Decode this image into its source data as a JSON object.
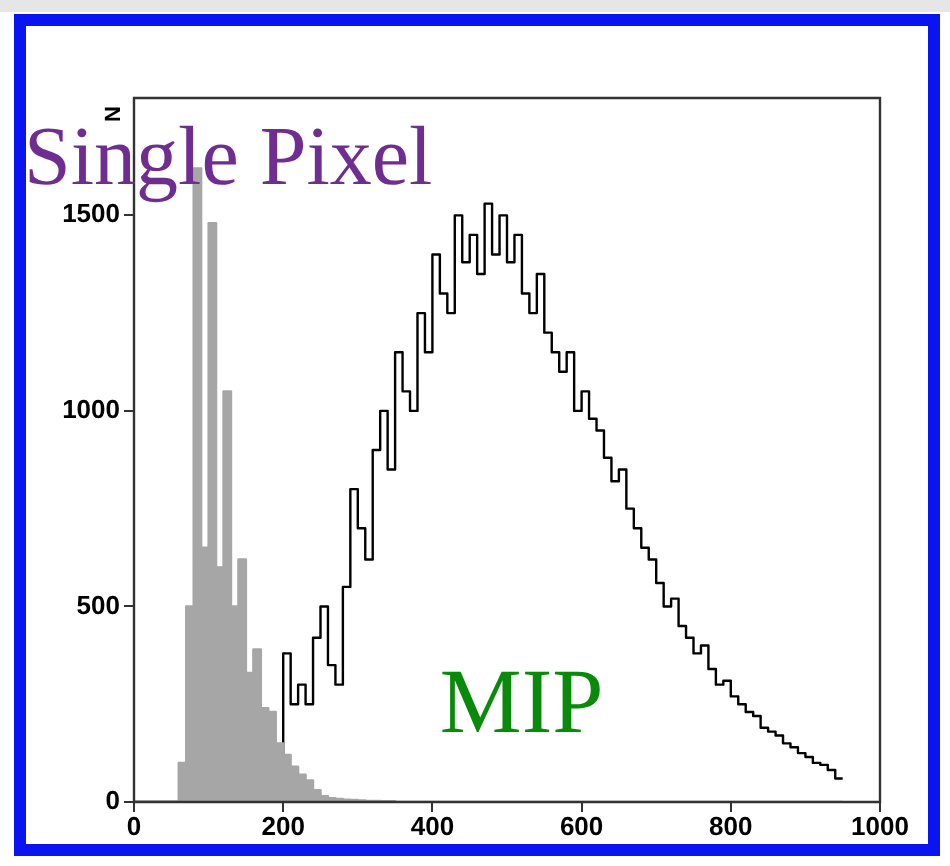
{
  "chart_data": {
    "type": "histogram",
    "ylabel": "N",
    "bins": [
      0,
      10,
      20,
      30,
      40,
      50,
      60,
      70,
      80,
      90,
      100,
      110,
      120,
      130,
      140,
      150,
      160,
      170,
      180,
      190,
      200,
      210,
      220,
      230,
      240,
      250,
      260,
      270,
      280,
      290,
      300,
      310,
      320,
      330,
      340,
      350,
      360,
      370,
      380,
      390,
      400,
      410,
      420,
      430,
      440,
      450,
      460,
      470,
      480,
      490,
      500,
      510,
      520,
      530,
      540,
      550,
      560,
      570,
      580,
      590,
      600,
      610,
      620,
      630,
      640,
      650,
      660,
      670,
      680,
      690,
      700,
      710,
      720,
      730,
      740,
      750,
      760,
      770,
      780,
      790,
      800,
      810,
      820,
      830,
      840,
      850,
      860,
      870,
      880,
      890,
      900,
      910,
      920,
      930,
      940,
      950
    ],
    "series": [
      {
        "name": "Single Pixel",
        "color": "#a6a6a6",
        "values": [
          0,
          0,
          0,
          0,
          0,
          0,
          100,
          500,
          1620,
          650,
          1480,
          600,
          1050,
          500,
          620,
          330,
          390,
          240,
          230,
          150,
          120,
          90,
          70,
          55,
          30,
          15,
          10,
          8,
          6,
          5,
          4,
          3,
          3,
          2,
          2,
          0,
          0,
          0,
          0,
          0,
          0,
          0,
          0,
          0,
          0,
          0,
          0,
          0,
          0,
          0,
          0,
          0,
          0,
          0,
          0,
          0,
          0,
          0,
          0,
          0,
          0,
          0,
          0,
          0,
          0,
          0,
          0,
          0,
          0,
          0,
          0,
          0,
          0,
          0,
          0,
          0,
          0,
          0,
          0,
          0,
          0,
          0,
          0,
          0,
          0,
          0,
          0,
          0,
          0,
          0,
          0,
          0,
          0,
          0,
          0
        ]
      },
      {
        "name": "MIP",
        "color": "#000000",
        "values": [
          0,
          0,
          0,
          0,
          0,
          0,
          0,
          0,
          0,
          0,
          0,
          0,
          0,
          0,
          0,
          0,
          0,
          0,
          0,
          0,
          380,
          250,
          300,
          250,
          420,
          500,
          350,
          300,
          550,
          800,
          700,
          620,
          900,
          1000,
          850,
          1150,
          1050,
          1000,
          1250,
          1150,
          1400,
          1300,
          1250,
          1500,
          1380,
          1450,
          1350,
          1530,
          1400,
          1500,
          1380,
          1450,
          1300,
          1250,
          1350,
          1200,
          1150,
          1100,
          1150,
          1000,
          1050,
          980,
          950,
          880,
          820,
          850,
          750,
          700,
          650,
          620,
          560,
          500,
          520,
          450,
          420,
          380,
          400,
          340,
          300,
          310,
          270,
          250,
          230,
          220,
          190,
          180,
          170,
          150,
          140,
          125,
          115,
          100,
          95,
          82,
          60
        ]
      }
    ],
    "xlim": [
      0,
      1000
    ],
    "xticks": [
      0,
      200,
      400,
      600,
      800,
      1000
    ],
    "ylim": [
      0,
      1800
    ],
    "yticks": [
      0,
      500,
      1000,
      1500
    ],
    "grid": false,
    "legend": false
  }
}
